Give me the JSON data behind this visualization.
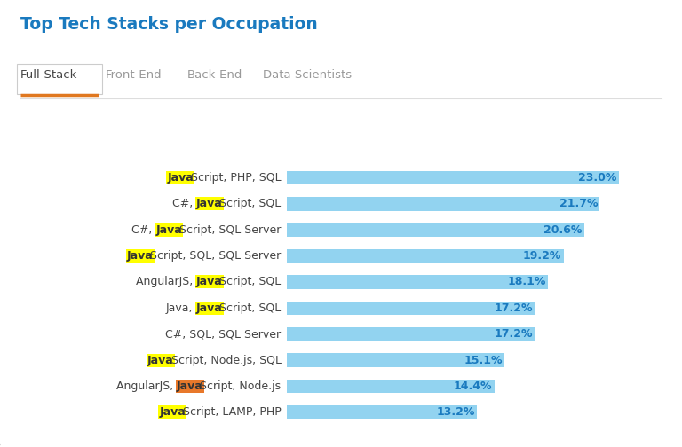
{
  "title": "Top Tech Stacks per Occupation",
  "title_color": "#1a7abf",
  "tabs": [
    "Full-Stack",
    "Front-End",
    "Back-End",
    "Data Scientists"
  ],
  "active_tab": "Full-Stack",
  "active_tab_color": "#e07820",
  "tab_text_color_active": "#444444",
  "tab_text_color_inactive": "#999999",
  "categories": [
    "JavaScript, PHP, SQL",
    "C#, JavaScript, SQL",
    "C#, JavaScript, SQL Server",
    "JavaScript, SQL, SQL Server",
    "AngularJS, JavaScript, SQL",
    "Java, JavaScript, SQL",
    "C#, SQL, SQL Server",
    "JavaScript, Node.js, SQL",
    "AngularJS, JavaScript, Node.js",
    "JavaScript, LAMP, PHP"
  ],
  "highlight_info": [
    {
      "pre": "",
      "hi": "Java",
      "post": "Script, PHP, SQL",
      "hi_color": "#ffff00"
    },
    {
      "pre": "C#, ",
      "hi": "Java",
      "post": "Script, SQL",
      "hi_color": "#ffff00"
    },
    {
      "pre": "C#, ",
      "hi": "Java",
      "post": "Script, SQL Server",
      "hi_color": "#ffff00"
    },
    {
      "pre": "",
      "hi": "Java",
      "post": "Script, SQL, SQL Server",
      "hi_color": "#ffff00"
    },
    {
      "pre": "AngularJS, ",
      "hi": "Java",
      "post": "Script, SQL",
      "hi_color": "#ffff00"
    },
    {
      "pre": "Java, ",
      "hi": "Java",
      "post": "Script, SQL",
      "hi_color": "#ffff00"
    },
    {
      "pre": "C#, SQL, SQL Server",
      "hi": null,
      "post": "",
      "hi_color": null
    },
    {
      "pre": "",
      "hi": "Java",
      "post": "Script, Node.js, SQL",
      "hi_color": "#ffff00"
    },
    {
      "pre": "AngularJS, ",
      "hi": "Java",
      "post": "Script, Node.js",
      "hi_color": "#e8782a"
    },
    {
      "pre": "",
      "hi": "Java",
      "post": "Script, LAMP, PHP",
      "hi_color": "#ffff00"
    }
  ],
  "values": [
    23.0,
    21.7,
    20.6,
    19.2,
    18.1,
    17.2,
    17.2,
    15.1,
    14.4,
    13.2
  ],
  "bar_color": "#92d3f0",
  "value_text_color": "#1a7abf",
  "bar_height": 0.52,
  "background_color": "#ffffff",
  "max_val": 25.5,
  "label_fontsize": 9.0,
  "value_fontsize": 9.0
}
